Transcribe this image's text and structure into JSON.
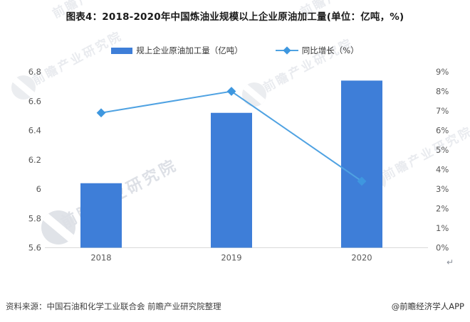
{
  "chart_data": {
    "type": "bar+line",
    "title": "图表4：2018-2020年中国炼油业规模以上企业原油加工量(单位：亿吨，%)",
    "categories": [
      "2018",
      "2019",
      "2020"
    ],
    "series": [
      {
        "name": "规上企业原油加工量（亿吨）",
        "type": "bar",
        "axis": "left",
        "values": [
          6.04,
          6.52,
          6.74
        ],
        "color": "#3e7ed8"
      },
      {
        "name": "同比增长（%）",
        "type": "line",
        "axis": "right",
        "marker": "diamond",
        "values": [
          6.9,
          8.0,
          3.4
        ],
        "color": "#4fa2e2"
      }
    ],
    "left_axis": {
      "min": 5.6,
      "max": 6.8,
      "step": 0.2,
      "ticks": [
        "6.8",
        "6.6",
        "6.4",
        "6.2",
        "6",
        "5.8",
        "5.6"
      ]
    },
    "right_axis": {
      "min": 0,
      "max": 9,
      "step": 1,
      "ticks": [
        "9%",
        "8%",
        "7%",
        "6%",
        "5%",
        "4%",
        "3%",
        "2%",
        "1%",
        "0%"
      ]
    },
    "grid": false,
    "legend_position": "top"
  },
  "colors": {
    "bar": "#3e7ed8",
    "line": "#4fa2e2",
    "marker": "#3e97df",
    "axis_line": "#d9d9d9",
    "tick_text": "#595959",
    "title_text": "#1a1a1a",
    "watermark": "#c7ccd6"
  },
  "watermark": {
    "text": "前瞻产业研究院"
  },
  "footer": {
    "source": "资料来源：中国石油和化学工业联合会 前瞻产业研究院整理",
    "credit": "@前瞻经济学人APP"
  },
  "misc": {
    "return_glyph": "↵"
  }
}
